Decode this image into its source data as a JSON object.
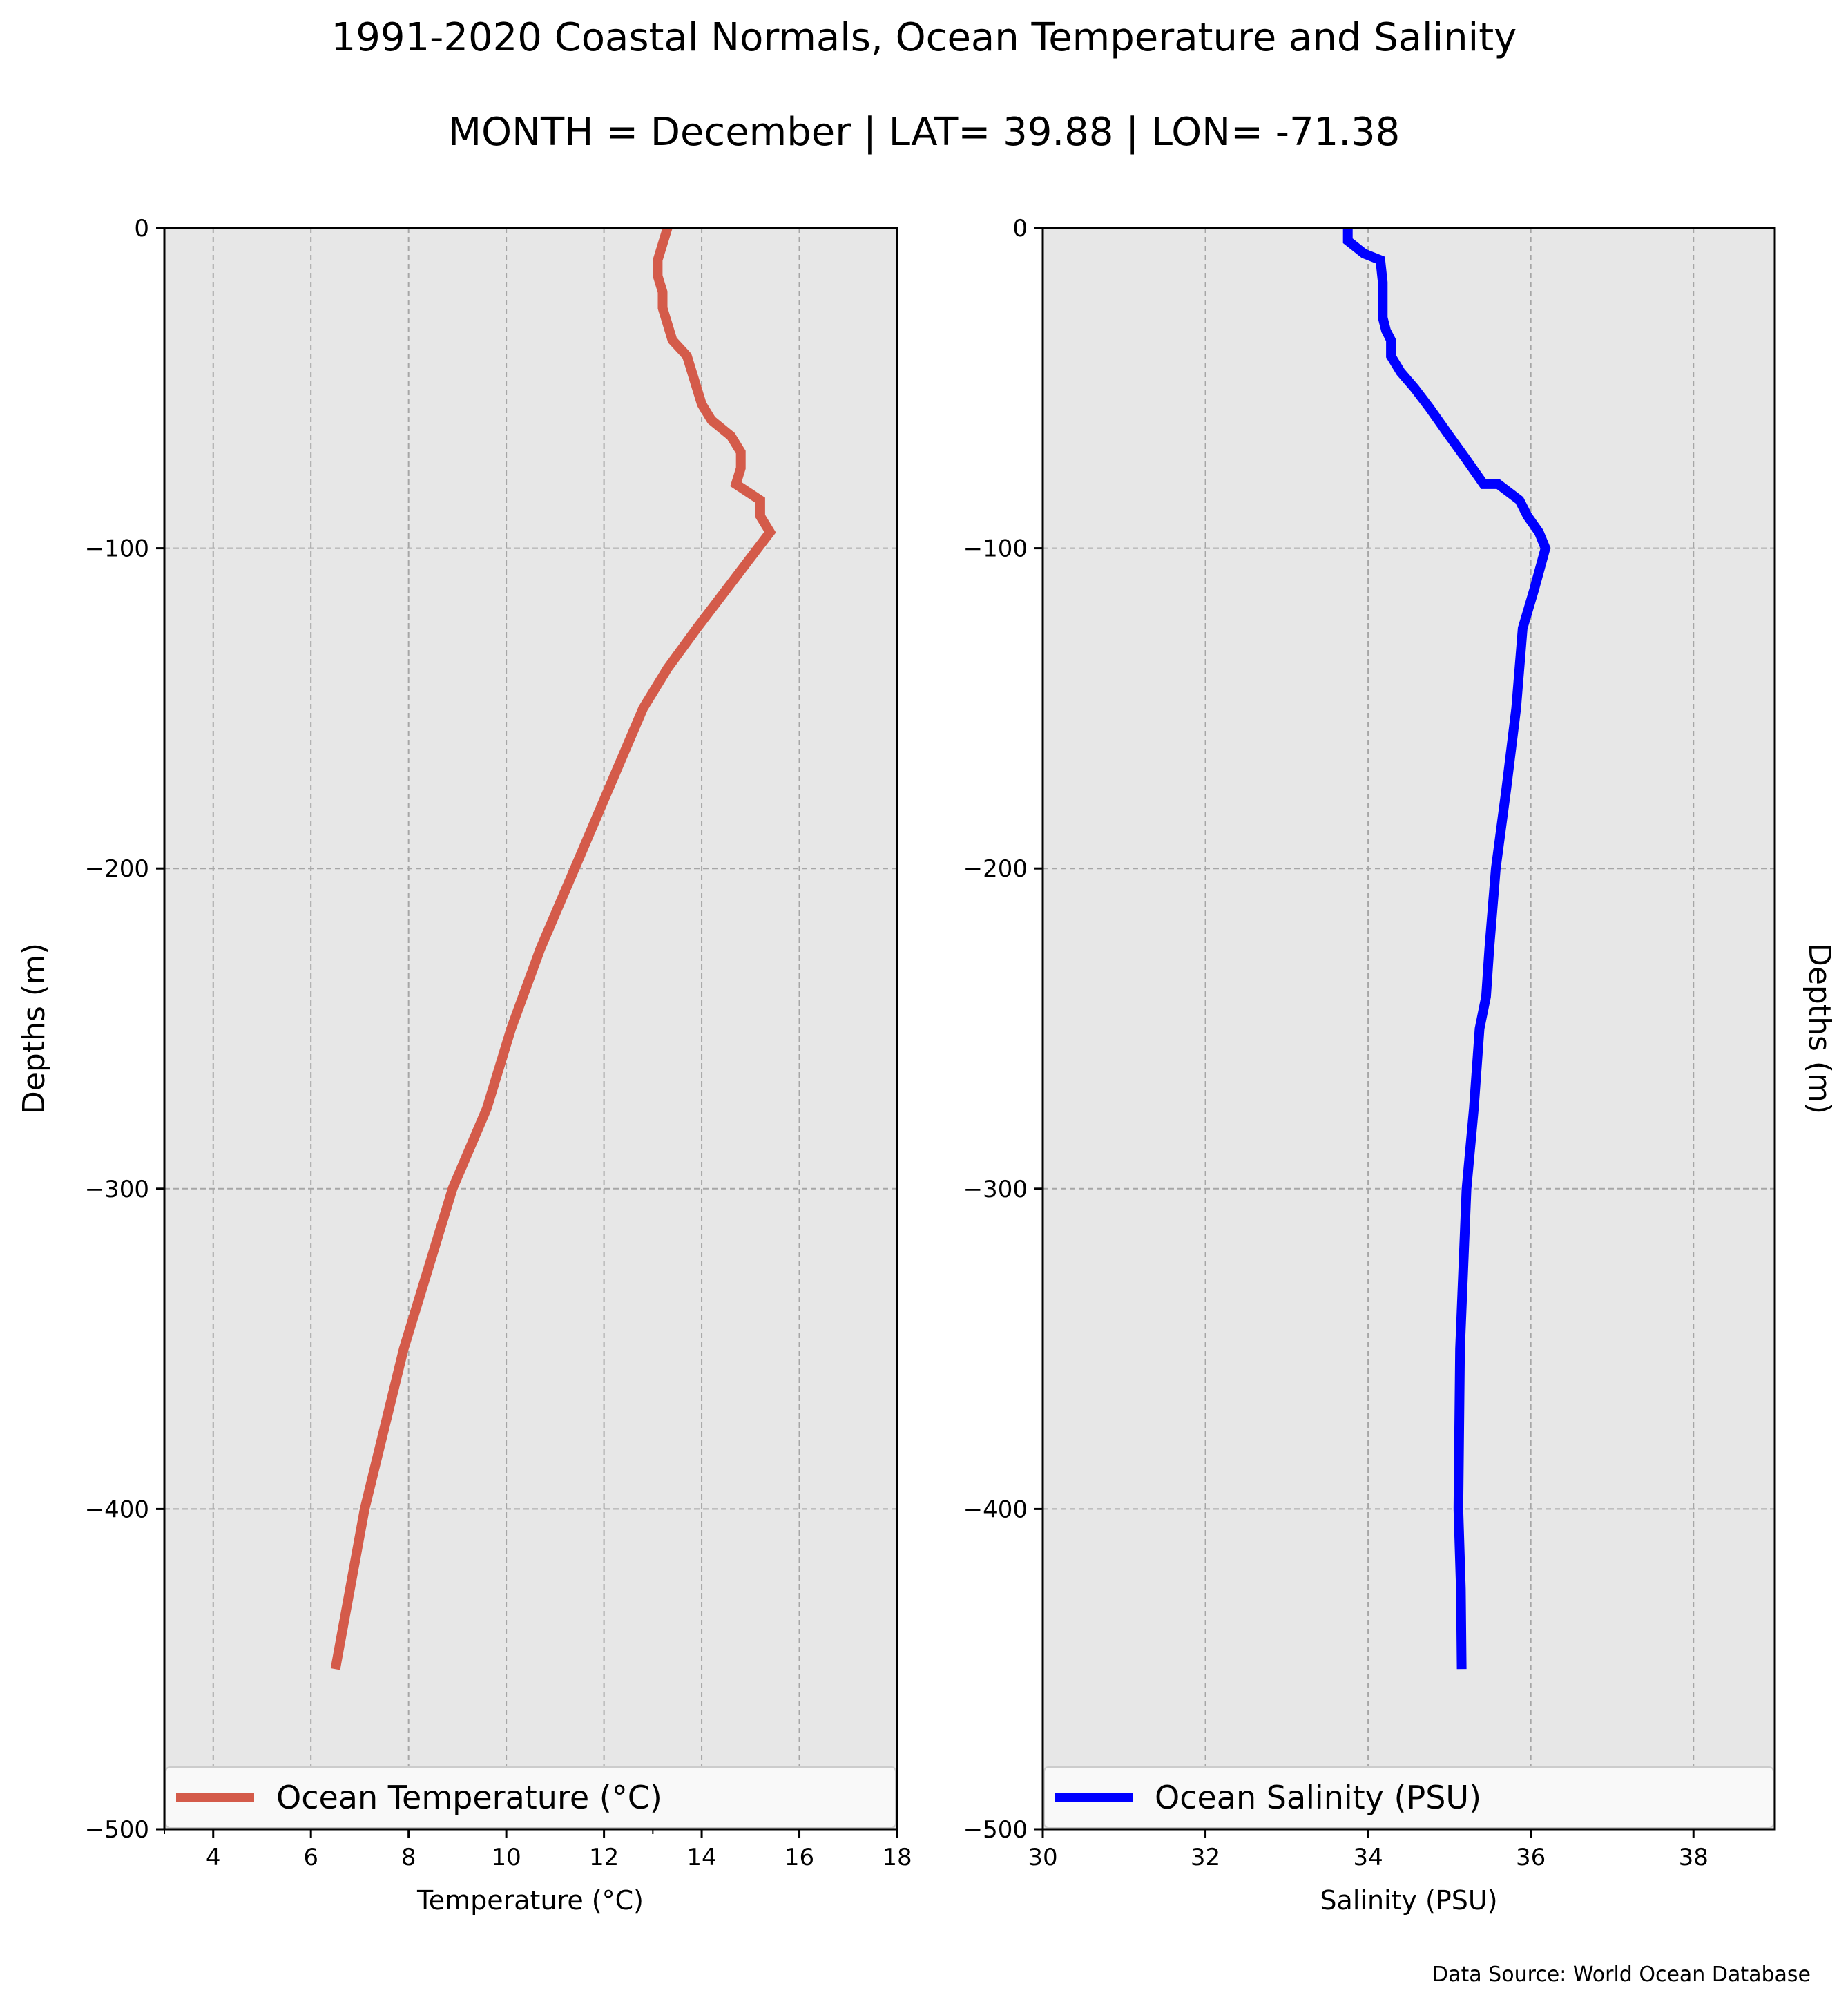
{
  "title_line1": "1991-2020 Coastal Normals, Ocean Temperature and Salinity",
  "title_line2": "MONTH = December | LAT= 39.88 | LON= -71.38",
  "footer_source": "Data Source: World Ocean Database",
  "colors": {
    "temperature": "#d45b4a",
    "salinity": "#0000ff",
    "panel_background": "#e7e7e7",
    "grid": "#a6a6a6"
  },
  "chart_data": [
    {
      "type": "line",
      "xlabel": "Temperature ($^\\circ$C)",
      "xlabel_display": "Temperature (°C)",
      "ylabel": "Depths (m)",
      "xlim": [
        3,
        18
      ],
      "ylim": [
        -500,
        0
      ],
      "xticks": [
        4,
        6,
        8,
        10,
        12,
        14,
        16,
        18
      ],
      "yticks": [
        0,
        -100,
        -200,
        -300,
        -400,
        -500
      ],
      "grid": true,
      "legend_location": "bottom",
      "series": [
        {
          "name": "Ocean Temperature (°C)",
          "color": "#d45b4a",
          "x": [
            13.3,
            13.2,
            13.1,
            13.1,
            13.2,
            13.2,
            13.3,
            13.4,
            13.7,
            13.8,
            14.0,
            14.2,
            14.6,
            14.8,
            14.8,
            14.7,
            15.2,
            15.2,
            15.4,
            14.9,
            14.4,
            13.9,
            13.3,
            12.8,
            12.1,
            11.4,
            10.7,
            10.1,
            9.6,
            8.9,
            8.4,
            7.9,
            7.5,
            7.1,
            6.8,
            6.5
          ],
          "y": [
            0,
            -5,
            -10,
            -15,
            -20,
            -25,
            -30,
            -35,
            -40,
            -45,
            -55,
            -60,
            -65,
            -70,
            -75,
            -80,
            -85,
            -90,
            -95,
            -105,
            -115,
            -125,
            -137.5,
            -150,
            -175,
            -200,
            -225,
            -250,
            -275,
            -300,
            -325,
            -350,
            -375,
            -400,
            -425,
            -450
          ]
        }
      ]
    },
    {
      "type": "line",
      "xlabel": "Salinity (PSU)",
      "ylabel": "Depths (m)",
      "xlim": [
        30,
        39
      ],
      "ylim": [
        -500,
        0
      ],
      "xticks": [
        30,
        32,
        34,
        36,
        38
      ],
      "yticks": [
        0,
        -100,
        -200,
        -300,
        -400,
        -500
      ],
      "grid": true,
      "legend_location": "bottom",
      "series": [
        {
          "name": "Ocean Salinity (PSU)",
          "color": "#0000ff",
          "x": [
            33.75,
            33.75,
            33.95,
            34.15,
            34.18,
            34.18,
            34.22,
            34.28,
            34.28,
            34.4,
            34.57,
            34.75,
            35.0,
            35.2,
            35.42,
            35.6,
            35.86,
            35.96,
            36.1,
            36.18,
            36.04,
            35.9,
            35.82,
            35.7,
            35.57,
            35.49,
            35.45,
            35.37,
            35.3,
            35.21,
            35.17,
            35.13,
            35.12,
            35.11,
            35.14,
            35.15
          ],
          "y": [
            0,
            -4,
            -8,
            -10,
            -17,
            -28,
            -32,
            -35,
            -40,
            -45,
            -50,
            -56,
            -65,
            -72,
            -80,
            -80,
            -85,
            -90,
            -95,
            -100,
            -113,
            -125,
            -150,
            -175,
            -200,
            -225,
            -240,
            -250,
            -275,
            -300,
            -325,
            -350,
            -375,
            -400,
            -425,
            -450
          ]
        }
      ]
    }
  ]
}
